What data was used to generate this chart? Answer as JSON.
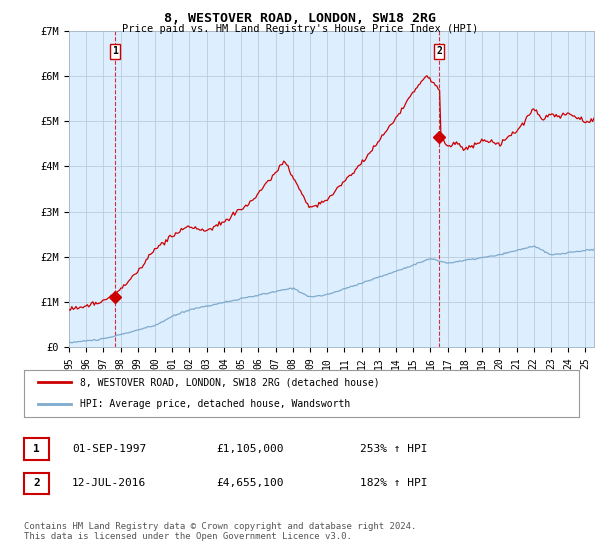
{
  "title": "8, WESTOVER ROAD, LONDON, SW18 2RG",
  "subtitle": "Price paid vs. HM Land Registry's House Price Index (HPI)",
  "sale1_date": "01-SEP-1997",
  "sale1_price": 1105000,
  "sale1_hpi": "253% ↑ HPI",
  "sale1_label": "1",
  "sale2_date": "12-JUL-2016",
  "sale2_price": 4655100,
  "sale2_hpi": "182% ↑ HPI",
  "sale2_label": "2",
  "legend_line1": "8, WESTOVER ROAD, LONDON, SW18 2RG (detached house)",
  "legend_line2": "HPI: Average price, detached house, Wandsworth",
  "footer": "Contains HM Land Registry data © Crown copyright and database right 2024.\nThis data is licensed under the Open Government Licence v3.0.",
  "price_line_color": "#cc0000",
  "hpi_line_color": "#7faacc",
  "sale_marker_color": "#cc0000",
  "vline_color": "#cc0000",
  "grid_color": "#bbccdd",
  "chart_bg": "#ddeeff",
  "background_color": "#ffffff",
  "ylim": [
    0,
    7000000
  ],
  "yticks": [
    0,
    1000000,
    2000000,
    3000000,
    4000000,
    5000000,
    6000000,
    7000000
  ],
  "ytick_labels": [
    "£0",
    "£1M",
    "£2M",
    "£3M",
    "£4M",
    "£5M",
    "£6M",
    "£7M"
  ],
  "xlim_start": 1995.0,
  "xlim_end": 2025.5
}
